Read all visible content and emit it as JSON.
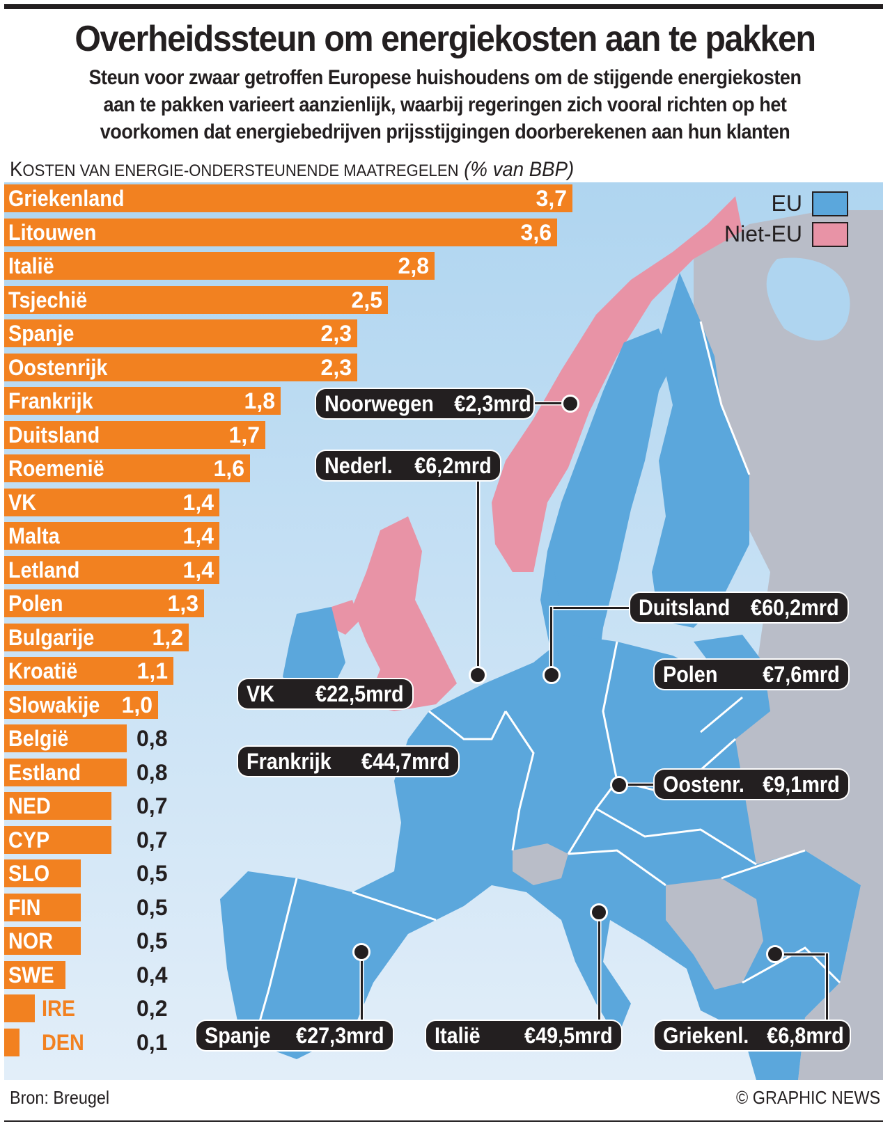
{
  "header": {
    "title": "Overheidssteun om energiekosten aan te pakken",
    "subtitle_lines": [
      "Steun voor zwaar getroffen Europese huishoudens om de stijgende energiekosten",
      "aan te pakken varieert aanzienlijk, waarbij regeringen zich vooral richten op het",
      "voorkomen dat energiebedrijven prijsstijgingen doorberekenen aan hun klanten"
    ]
  },
  "chart_data": {
    "type": "bar",
    "orientation": "horizontal",
    "title": "Kosten van energie-ondersteunende maatregelen",
    "title_cap": "K",
    "title_rest": "OSTEN VAN ENERGIE-ONDERSTEUNENDE MAATREGELEN",
    "unit_label": "(% van BBP)",
    "xlabel": "",
    "ylabel": "",
    "xlim": [
      0,
      3.7
    ],
    "grid": false,
    "bar_color": "#f28120",
    "categories": [
      "Griekenland",
      "Litouwen",
      "Italië",
      "Tsjechië",
      "Spanje",
      "Oostenrijk",
      "Frankrijk",
      "Duitsland",
      "Roemenië",
      "VK",
      "Malta",
      "Letland",
      "Polen",
      "Bulgarije",
      "Kroatië",
      "Slowakije",
      "België",
      "Estland",
      "NED",
      "CYP",
      "SLO",
      "FIN",
      "NOR",
      "SWE",
      "IRE",
      "DEN"
    ],
    "values": [
      3.7,
      3.6,
      2.8,
      2.5,
      2.3,
      2.3,
      1.8,
      1.7,
      1.6,
      1.4,
      1.4,
      1.4,
      1.3,
      1.2,
      1.1,
      1.0,
      0.8,
      0.8,
      0.7,
      0.7,
      0.5,
      0.5,
      0.5,
      0.4,
      0.2,
      0.1
    ],
    "value_labels": [
      "3,7",
      "3,6",
      "2,8",
      "2,5",
      "2,3",
      "2,3",
      "1,8",
      "1,7",
      "1,6",
      "1,4",
      "1,4",
      "1,4",
      "1,3",
      "1,2",
      "1,1",
      "1,0",
      "0,8",
      "0,8",
      "0,7",
      "0,7",
      "0,5",
      "0,5",
      "0,5",
      "0,4",
      "0,2",
      "0,1"
    ]
  },
  "map": {
    "legend": [
      {
        "label": "EU",
        "color": "#5ba7dc"
      },
      {
        "label": "Niet-EU",
        "color": "#e893a6"
      }
    ],
    "colors": {
      "sea_top": "#afd5f0",
      "sea_bottom": "#dcebf8",
      "eu": "#5ba7dc",
      "non_eu_highlight": "#e893a6",
      "other": "#b9bdc8",
      "border": "#ffffff"
    },
    "callouts": [
      {
        "country": "Noorwegen",
        "amount": "€2,3mrd"
      },
      {
        "country": "Nederl.",
        "amount": "€6,2mrd"
      },
      {
        "country": "Duitsland",
        "amount": "€60,2mrd"
      },
      {
        "country": "Polen",
        "amount": "€7,6mrd"
      },
      {
        "country": "VK",
        "amount": "€22,5mrd"
      },
      {
        "country": "Frankrijk",
        "amount": "€44,7mrd"
      },
      {
        "country": "Oostenr.",
        "amount": "€9,1mrd"
      },
      {
        "country": "Spanje",
        "amount": "€27,3mrd"
      },
      {
        "country": "Italië",
        "amount": "€49,5mrd"
      },
      {
        "country": "Griekenl.",
        "amount": "€6,8mrd"
      }
    ]
  },
  "footer": {
    "source": "Bron: Breugel",
    "credit": "© GRAPHIC NEWS"
  }
}
